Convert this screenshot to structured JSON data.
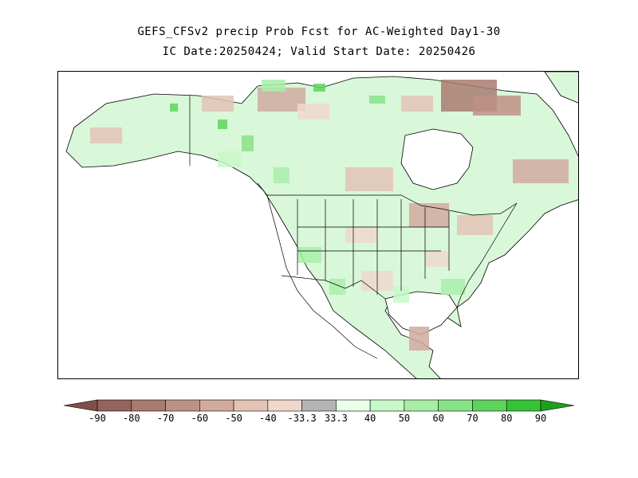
{
  "title": {
    "line1": "GEFS_CFSv2 precip Prob Fcst for AC-Weighted Day1-30",
    "line2": "IC Date:20250424; Valid Start Date: 20250426"
  },
  "colorbar": {
    "labels": [
      "-90",
      "-80",
      "-70",
      "-60",
      "-50",
      "-40",
      "-33.3",
      "33.3",
      "40",
      "50",
      "60",
      "70",
      "80",
      "90"
    ],
    "colors": [
      "#7d5148",
      "#93645c",
      "#a87b70",
      "#bd9286",
      "#d0aa9d",
      "#e2c3b5",
      "#efd9cd",
      "#b4b4b4",
      "#eaffea",
      "#c8f8c8",
      "#a8eea8",
      "#88e288",
      "#5ed45e",
      "#36c236",
      "#1ea01e"
    ],
    "left_end_color": "#7d5148",
    "right_end_color": "#1ea01e"
  },
  "map": {
    "region": "North America",
    "land_color": "#d9f7d9",
    "ocean_color": "#ffffff",
    "boundary_color": "#000000"
  }
}
